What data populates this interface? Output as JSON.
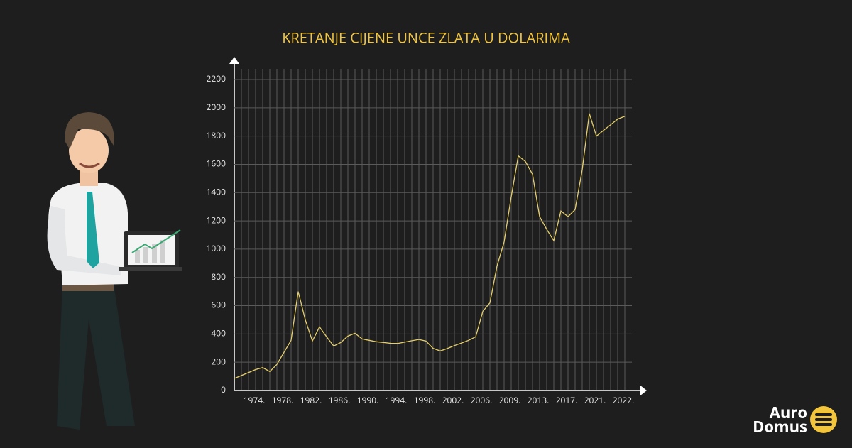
{
  "chart_data": {
    "type": "line",
    "title": "KRETANJE CIJENE UNCE ZLATA U DOLARIMA",
    "categories": [
      null,
      null,
      null,
      "1974.",
      null,
      null,
      null,
      "1978.",
      null,
      null,
      null,
      "1982.",
      null,
      null,
      null,
      "1986.",
      null,
      null,
      null,
      "1990.",
      null,
      null,
      null,
      "1994.",
      null,
      null,
      null,
      "1998.",
      null,
      null,
      null,
      "2002.",
      null,
      null,
      null,
      "2006.",
      null,
      null,
      null,
      "2009.",
      null,
      null,
      null,
      "2013.",
      null,
      null,
      null,
      "2017.",
      null,
      null,
      null,
      "2021.",
      null,
      null,
      null,
      "2022."
    ],
    "values": [
      85,
      106,
      127,
      148,
      162,
      134,
      185,
      270,
      355,
      700,
      500,
      350,
      450,
      380,
      315,
      340,
      385,
      405,
      365,
      355,
      345,
      340,
      334,
      333,
      342,
      352,
      361,
      350,
      298,
      280,
      297,
      318,
      336,
      355,
      380,
      560,
      620,
      880,
      1050,
      1370,
      1660,
      1620,
      1530,
      1230,
      1140,
      1060,
      1270,
      1230,
      1280,
      1560,
      1960,
      1800,
      1840,
      1880,
      1920,
      1940
    ],
    "color": "#e6cf6a",
    "ylim": [
      0,
      2200
    ],
    "yticks": [
      0,
      200,
      400,
      600,
      800,
      1000,
      1200,
      1400,
      1600,
      1800,
      2000,
      2200
    ],
    "grid": true
  },
  "logo": {
    "line1": "Auro",
    "line2": "Domus"
  }
}
